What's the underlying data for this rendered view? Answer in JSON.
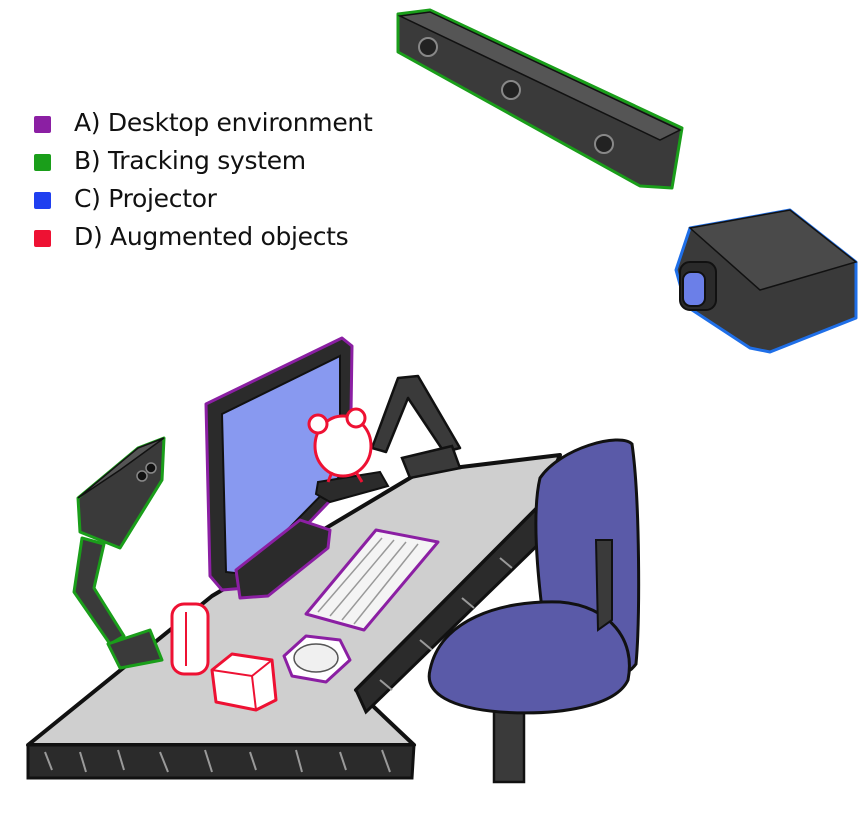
{
  "legend": {
    "items": [
      {
        "label": "A) Desktop environment",
        "color": "#8b1fa3",
        "key": "desktop-environment"
      },
      {
        "label": "B) Tracking system",
        "color": "#1a9e1a",
        "key": "tracking-system"
      },
      {
        "label": "C) Projector",
        "color": "#1f3ff0",
        "key": "projector"
      },
      {
        "label": "D) Augmented objects",
        "color": "#ee1133",
        "key": "augmented-objects"
      }
    ]
  },
  "colors": {
    "desktop_outline": "#8b1fa3",
    "tracking_outline": "#1a9e1a",
    "projector_outline": "#1f6fe8",
    "augmented_outline": "#ee1133",
    "desk_top": "#cfcfcf",
    "desk_edge": "#2b2b2b",
    "screen": "#8899f0",
    "chair": "#5a5aa8",
    "device_body": "#3a3a3a",
    "projector_lens": "#6b7fe8"
  }
}
